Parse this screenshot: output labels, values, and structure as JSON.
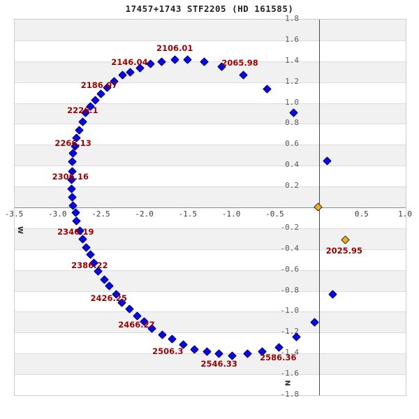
{
  "title": "17457+1743 STF2205 (HD 161585)",
  "chart_data": {
    "type": "scatter",
    "title": "17457+1743 STF2205 (HD 161585)",
    "xlim": [
      -3.5,
      1.0
    ],
    "ylim": [
      -1.8,
      1.8
    ],
    "x_tick_labels": [
      "-3.5",
      "-3.0",
      "-2.5",
      "-2.0",
      "-1.5",
      "-1.0",
      "-0.5",
      "0.5",
      "1.0"
    ],
    "x_tick_values": [
      -3.5,
      -3.0,
      -2.5,
      -2.0,
      -1.5,
      -1.0,
      -0.5,
      0.5,
      1.0
    ],
    "y_tick_labels": [
      "1.8",
      "1.6",
      "1.4",
      "1.2",
      "1.0",
      "0.8",
      "0.6",
      "0.4",
      "0.2",
      "-0.2",
      "-0.4",
      "-0.6",
      "-0.8",
      "-1.0",
      "-1.2",
      "-1.4",
      "-1.6",
      "-1.8"
    ],
    "y_tick_values": [
      1.8,
      1.6,
      1.4,
      1.2,
      1.0,
      0.8,
      0.6,
      0.4,
      0.2,
      -0.2,
      -0.4,
      -0.6,
      -0.8,
      -1.0,
      -1.2,
      -1.4,
      -1.6,
      -1.8
    ],
    "grid_step": 0.2,
    "band_colors": {
      "even": "#f1f1f1",
      "odd": "#ffffff"
    },
    "direction_labels": {
      "west": "W",
      "north": "N"
    },
    "series": [
      {
        "name": "predicted-orbit",
        "marker": "diamond",
        "color": "#0a0ad2",
        "points": [
          [
            0.1,
            0.44
          ],
          [
            -0.28,
            0.9
          ],
          [
            -0.59,
            1.13
          ],
          [
            -0.86,
            1.26
          ],
          [
            -1.11,
            1.34
          ],
          [
            -1.31,
            1.39
          ],
          [
            -1.5,
            1.41
          ],
          [
            -1.65,
            1.41
          ],
          [
            -1.8,
            1.39
          ],
          [
            -1.93,
            1.37
          ],
          [
            -2.05,
            1.33
          ],
          [
            -2.16,
            1.29
          ],
          [
            -2.25,
            1.26
          ],
          [
            -2.35,
            1.2
          ],
          [
            -2.43,
            1.14
          ],
          [
            -2.5,
            1.08
          ],
          [
            -2.56,
            1.02
          ],
          [
            -2.62,
            0.96
          ],
          [
            -2.68,
            0.9
          ],
          [
            -2.71,
            0.81
          ],
          [
            -2.75,
            0.73
          ],
          [
            -2.78,
            0.66
          ],
          [
            -2.8,
            0.58
          ],
          [
            -2.82,
            0.51
          ],
          [
            -2.83,
            0.43
          ],
          [
            -2.83,
            0.34
          ],
          [
            -2.84,
            0.26
          ],
          [
            -2.84,
            0.17
          ],
          [
            -2.83,
            0.09
          ],
          [
            -2.82,
            0.01
          ],
          [
            -2.79,
            -0.06
          ],
          [
            -2.78,
            -0.14
          ],
          [
            -2.74,
            -0.23
          ],
          [
            -2.71,
            -0.31
          ],
          [
            -2.67,
            -0.39
          ],
          [
            -2.62,
            -0.46
          ],
          [
            -2.58,
            -0.54
          ],
          [
            -2.53,
            -0.62
          ],
          [
            -2.46,
            -0.7
          ],
          [
            -2.4,
            -0.76
          ],
          [
            -2.32,
            -0.84
          ],
          [
            -2.26,
            -0.92
          ],
          [
            -2.17,
            -0.98
          ],
          [
            -2.08,
            -1.05
          ],
          [
            -2.0,
            -1.1
          ],
          [
            -1.91,
            -1.17
          ],
          [
            -1.79,
            -1.23
          ],
          [
            -1.68,
            -1.27
          ],
          [
            -1.55,
            -1.32
          ],
          [
            -1.42,
            -1.37
          ],
          [
            -1.28,
            -1.39
          ],
          [
            -1.14,
            -1.41
          ],
          [
            -0.99,
            -1.43
          ],
          [
            -0.81,
            -1.41
          ],
          [
            -0.64,
            -1.39
          ],
          [
            -0.45,
            -1.35
          ],
          [
            -0.25,
            -1.25
          ],
          [
            -0.04,
            -1.11
          ],
          [
            0.17,
            -0.84
          ]
        ]
      },
      {
        "name": "current-epoch-companion",
        "marker": "diamond",
        "color": "#efa820",
        "points": [
          [
            0.31,
            -0.32
          ]
        ]
      },
      {
        "name": "primary-star-origin",
        "marker": "diamond",
        "color": "#efa820",
        "points": [
          [
            0.0,
            0.0
          ]
        ]
      }
    ],
    "epoch_labels": [
      {
        "text": "2025.95",
        "x": 0.3,
        "y": -0.43
      },
      {
        "text": "2065.98",
        "x": -0.9,
        "y": 1.37
      },
      {
        "text": "2106.01",
        "x": -1.65,
        "y": 1.51
      },
      {
        "text": "2146.04",
        "x": -2.17,
        "y": 1.38
      },
      {
        "text": "2186.07",
        "x": -2.52,
        "y": 1.16
      },
      {
        "text": "2226.1",
        "x": -2.71,
        "y": 0.92
      },
      {
        "text": "2266.13",
        "x": -2.82,
        "y": 0.6
      },
      {
        "text": "2306.16",
        "x": -2.85,
        "y": 0.28
      },
      {
        "text": "2346.19",
        "x": -2.79,
        "y": -0.25
      },
      {
        "text": "2386.22",
        "x": -2.63,
        "y": -0.57
      },
      {
        "text": "2426.25",
        "x": -2.41,
        "y": -0.88
      },
      {
        "text": "2466.27",
        "x": -2.09,
        "y": -1.14
      },
      {
        "text": "2506.3",
        "x": -1.73,
        "y": -1.39
      },
      {
        "text": "2546.33",
        "x": -1.14,
        "y": -1.51
      },
      {
        "text": "2586.36",
        "x": -0.46,
        "y": -1.45
      }
    ],
    "colors": {
      "orbit_point": "#0a0ad2",
      "star_point": "#efa820",
      "epoch_label": "#990000",
      "band_gray": "#f1f1f1",
      "y_axis_line": "#4a4a4a",
      "x_axis_line": "#8a8a8a"
    }
  }
}
